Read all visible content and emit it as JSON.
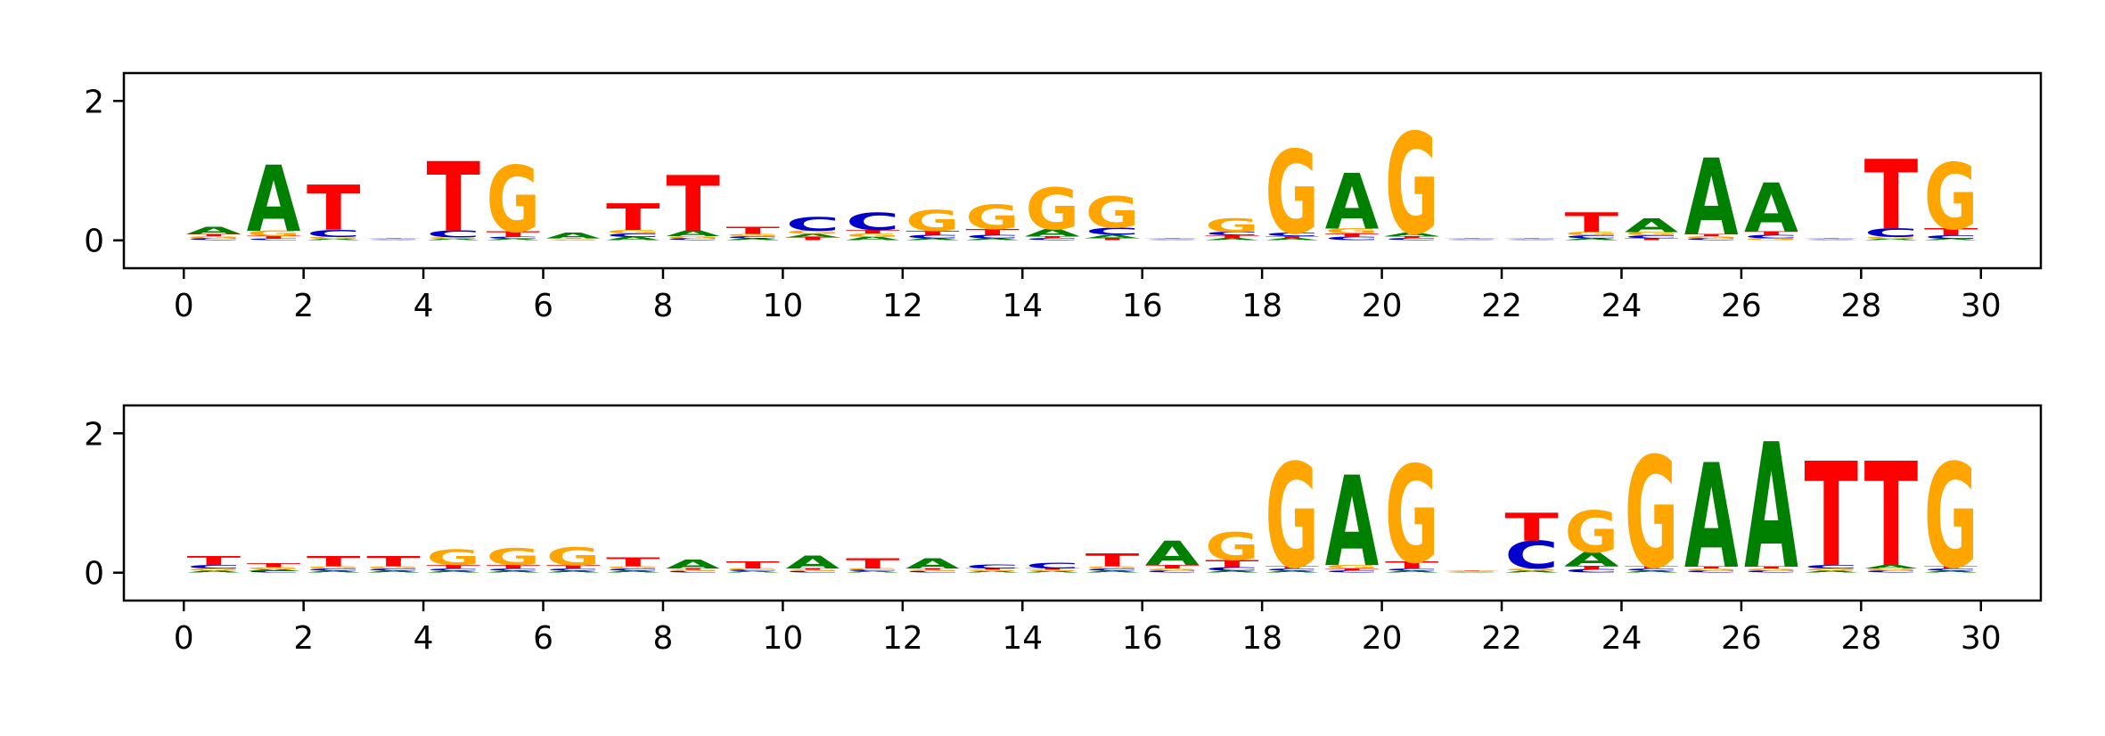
{
  "colors": {
    "A": "#008000",
    "C": "#0000cc",
    "G": "#ffa500",
    "T": "#ff0000"
  },
  "chart_data": [
    {
      "type": "sequence-logo",
      "title": "",
      "xlabel": "",
      "ylabel": "",
      "xlim": [
        -1,
        31
      ],
      "ylim": [
        -0.4,
        2.4
      ],
      "xticks": [
        0,
        2,
        4,
        6,
        8,
        10,
        12,
        14,
        16,
        18,
        20,
        22,
        24,
        26,
        28,
        30
      ],
      "yticks": [
        0,
        2
      ],
      "grid": false,
      "legend": "none",
      "positions": [
        {
          "pos": 0,
          "letters": {
            "A": 0.1,
            "C": 0.03,
            "G": 0.03,
            "T": 0.03
          }
        },
        {
          "pos": 1,
          "letters": {
            "A": 0.95,
            "C": 0.02,
            "G": 0.08,
            "T": 0.04
          }
        },
        {
          "pos": 2,
          "letters": {
            "A": 0.02,
            "C": 0.1,
            "G": 0.03,
            "T": 0.65
          }
        },
        {
          "pos": 3,
          "letters": {
            "A": 0.01,
            "C": 0.01,
            "G": 0.01,
            "T": 0.01
          }
        },
        {
          "pos": 4,
          "letters": {
            "A": 0.02,
            "C": 0.1,
            "G": 0.02,
            "T": 1.0
          }
        },
        {
          "pos": 5,
          "letters": {
            "A": 0.02,
            "C": 0.03,
            "G": 0.95,
            "T": 0.08
          }
        },
        {
          "pos": 6,
          "letters": {
            "A": 0.08,
            "C": 0.01,
            "G": 0.01,
            "T": 0.01
          }
        },
        {
          "pos": 7,
          "letters": {
            "A": 0.05,
            "C": 0.05,
            "G": 0.05,
            "T": 0.38
          }
        },
        {
          "pos": 8,
          "letters": {
            "A": 0.08,
            "C": 0.03,
            "G": 0.03,
            "T": 0.8
          }
        },
        {
          "pos": 9,
          "letters": {
            "A": 0.03,
            "C": 0.03,
            "G": 0.03,
            "T": 0.1
          }
        },
        {
          "pos": 10,
          "letters": {
            "A": 0.05,
            "C": 0.2,
            "G": 0.05,
            "T": 0.04
          }
        },
        {
          "pos": 11,
          "letters": {
            "A": 0.05,
            "C": 0.25,
            "G": 0.05,
            "T": 0.05
          }
        },
        {
          "pos": 12,
          "letters": {
            "A": 0.03,
            "C": 0.05,
            "G": 0.3,
            "T": 0.06
          }
        },
        {
          "pos": 13,
          "letters": {
            "A": 0.03,
            "C": 0.05,
            "G": 0.35,
            "T": 0.08
          }
        },
        {
          "pos": 14,
          "letters": {
            "A": 0.1,
            "C": 0.03,
            "G": 0.6,
            "T": 0.03
          }
        },
        {
          "pos": 15,
          "letters": {
            "A": 0.05,
            "C": 0.1,
            "G": 0.45,
            "T": 0.03
          }
        },
        {
          "pos": 16,
          "letters": {
            "A": 0.01,
            "C": 0.01,
            "G": 0.01,
            "T": 0.01
          }
        },
        {
          "pos": 17,
          "letters": {
            "A": 0.03,
            "C": 0.05,
            "G": 0.2,
            "T": 0.04
          }
        },
        {
          "pos": 18,
          "letters": {
            "A": 0.03,
            "C": 0.05,
            "G": 1.2,
            "T": 0.03
          }
        },
        {
          "pos": 19,
          "letters": {
            "A": 0.8,
            "C": 0.05,
            "G": 0.07,
            "T": 0.05
          }
        },
        {
          "pos": 20,
          "letters": {
            "A": 0.05,
            "C": 0.03,
            "G": 1.45,
            "T": 0.03
          }
        },
        {
          "pos": 21,
          "letters": {
            "A": 0.01,
            "C": 0.01,
            "G": 0.01,
            "T": 0.01
          }
        },
        {
          "pos": 22,
          "letters": {
            "A": 0.01,
            "C": 0.01,
            "G": 0.01,
            "T": 0.01
          }
        },
        {
          "pos": 23,
          "letters": {
            "A": 0.03,
            "C": 0.04,
            "G": 0.05,
            "T": 0.28
          }
        },
        {
          "pos": 24,
          "letters": {
            "A": 0.2,
            "C": 0.04,
            "G": 0.05,
            "T": 0.03
          }
        },
        {
          "pos": 25,
          "letters": {
            "A": 1.1,
            "C": 0.03,
            "G": 0.03,
            "T": 0.03
          }
        },
        {
          "pos": 26,
          "letters": {
            "A": 0.7,
            "C": 0.05,
            "G": 0.03,
            "T": 0.05
          }
        },
        {
          "pos": 27,
          "letters": {
            "A": 0.01,
            "C": 0.01,
            "G": 0.01,
            "T": 0.01
          }
        },
        {
          "pos": 28,
          "letters": {
            "A": 0.02,
            "C": 0.12,
            "G": 0.03,
            "T": 1.0
          }
        },
        {
          "pos": 29,
          "letters": {
            "A": 0.02,
            "C": 0.05,
            "G": 0.95,
            "T": 0.1
          }
        }
      ]
    },
    {
      "type": "sequence-logo",
      "title": "",
      "xlabel": "",
      "ylabel": "",
      "xlim": [
        -1,
        31
      ],
      "ylim": [
        -0.4,
        2.4
      ],
      "xticks": [
        0,
        2,
        4,
        6,
        8,
        10,
        12,
        14,
        16,
        18,
        20,
        22,
        24,
        26,
        28,
        30
      ],
      "yticks": [
        0,
        2
      ],
      "grid": false,
      "legend": "none",
      "positions": [
        {
          "pos": 0,
          "letters": {
            "A": 0.03,
            "C": 0.05,
            "G": 0.03,
            "T": 0.12
          }
        },
        {
          "pos": 1,
          "letters": {
            "A": 0.03,
            "C": 0.02,
            "G": 0.03,
            "T": 0.06
          }
        },
        {
          "pos": 2,
          "letters": {
            "A": 0.03,
            "C": 0.03,
            "G": 0.03,
            "T": 0.15
          }
        },
        {
          "pos": 3,
          "letters": {
            "A": 0.03,
            "C": 0.03,
            "G": 0.03,
            "T": 0.15
          }
        },
        {
          "pos": 4,
          "letters": {
            "A": 0.03,
            "C": 0.03,
            "G": 0.22,
            "T": 0.05
          }
        },
        {
          "pos": 5,
          "letters": {
            "A": 0.03,
            "C": 0.03,
            "G": 0.24,
            "T": 0.05
          }
        },
        {
          "pos": 6,
          "letters": {
            "A": 0.03,
            "C": 0.03,
            "G": 0.26,
            "T": 0.05
          }
        },
        {
          "pos": 7,
          "letters": {
            "A": 0.03,
            "C": 0.03,
            "G": 0.03,
            "T": 0.12
          }
        },
        {
          "pos": 8,
          "letters": {
            "A": 0.12,
            "C": 0.02,
            "G": 0.02,
            "T": 0.02
          }
        },
        {
          "pos": 9,
          "letters": {
            "A": 0.02,
            "C": 0.02,
            "G": 0.02,
            "T": 0.1
          }
        },
        {
          "pos": 10,
          "letters": {
            "A": 0.18,
            "C": 0.02,
            "G": 0.02,
            "T": 0.02
          }
        },
        {
          "pos": 11,
          "letters": {
            "A": 0.02,
            "C": 0.02,
            "G": 0.02,
            "T": 0.15
          }
        },
        {
          "pos": 12,
          "letters": {
            "A": 0.15,
            "C": 0.02,
            "G": 0.02,
            "T": 0.02
          }
        },
        {
          "pos": 13,
          "letters": {
            "A": 0.02,
            "C": 0.06,
            "G": 0.02,
            "T": 0.02
          }
        },
        {
          "pos": 14,
          "letters": {
            "A": 0.02,
            "C": 0.08,
            "G": 0.02,
            "T": 0.02
          }
        },
        {
          "pos": 15,
          "letters": {
            "A": 0.03,
            "C": 0.03,
            "G": 0.03,
            "T": 0.18
          }
        },
        {
          "pos": 16,
          "letters": {
            "A": 0.35,
            "C": 0.03,
            "G": 0.03,
            "T": 0.05
          }
        },
        {
          "pos": 17,
          "letters": {
            "A": 0.03,
            "C": 0.05,
            "G": 0.4,
            "T": 0.1
          }
        },
        {
          "pos": 18,
          "letters": {
            "A": 0.03,
            "C": 0.03,
            "G": 1.5,
            "T": 0.03
          }
        },
        {
          "pos": 19,
          "letters": {
            "A": 1.3,
            "C": 0.03,
            "G": 0.05,
            "T": 0.03
          }
        },
        {
          "pos": 20,
          "letters": {
            "A": 0.03,
            "C": 0.03,
            "G": 1.4,
            "T": 0.1
          }
        },
        {
          "pos": 21,
          "letters": {
            "A": 0.01,
            "C": 0.01,
            "G": 0.01,
            "T": 0.01
          }
        },
        {
          "pos": 22,
          "letters": {
            "A": 0.03,
            "C": 0.4,
            "G": 0.03,
            "T": 0.4
          }
        },
        {
          "pos": 23,
          "letters": {
            "A": 0.2,
            "C": 0.05,
            "G": 0.6,
            "T": 0.05
          }
        },
        {
          "pos": 24,
          "letters": {
            "A": 0.03,
            "C": 0.03,
            "G": 1.6,
            "T": 0.03
          }
        },
        {
          "pos": 25,
          "letters": {
            "A": 1.5,
            "C": 0.03,
            "G": 0.03,
            "T": 0.03
          }
        },
        {
          "pos": 26,
          "letters": {
            "A": 1.8,
            "C": 0.03,
            "G": 0.03,
            "T": 0.03
          }
        },
        {
          "pos": 27,
          "letters": {
            "A": 0.03,
            "C": 0.05,
            "G": 0.03,
            "T": 1.5
          }
        },
        {
          "pos": 28,
          "letters": {
            "A": 0.05,
            "C": 0.03,
            "G": 0.03,
            "T": 1.5
          }
        },
        {
          "pos": 29,
          "letters": {
            "A": 0.03,
            "C": 0.03,
            "G": 1.5,
            "T": 0.03
          }
        }
      ]
    }
  ]
}
